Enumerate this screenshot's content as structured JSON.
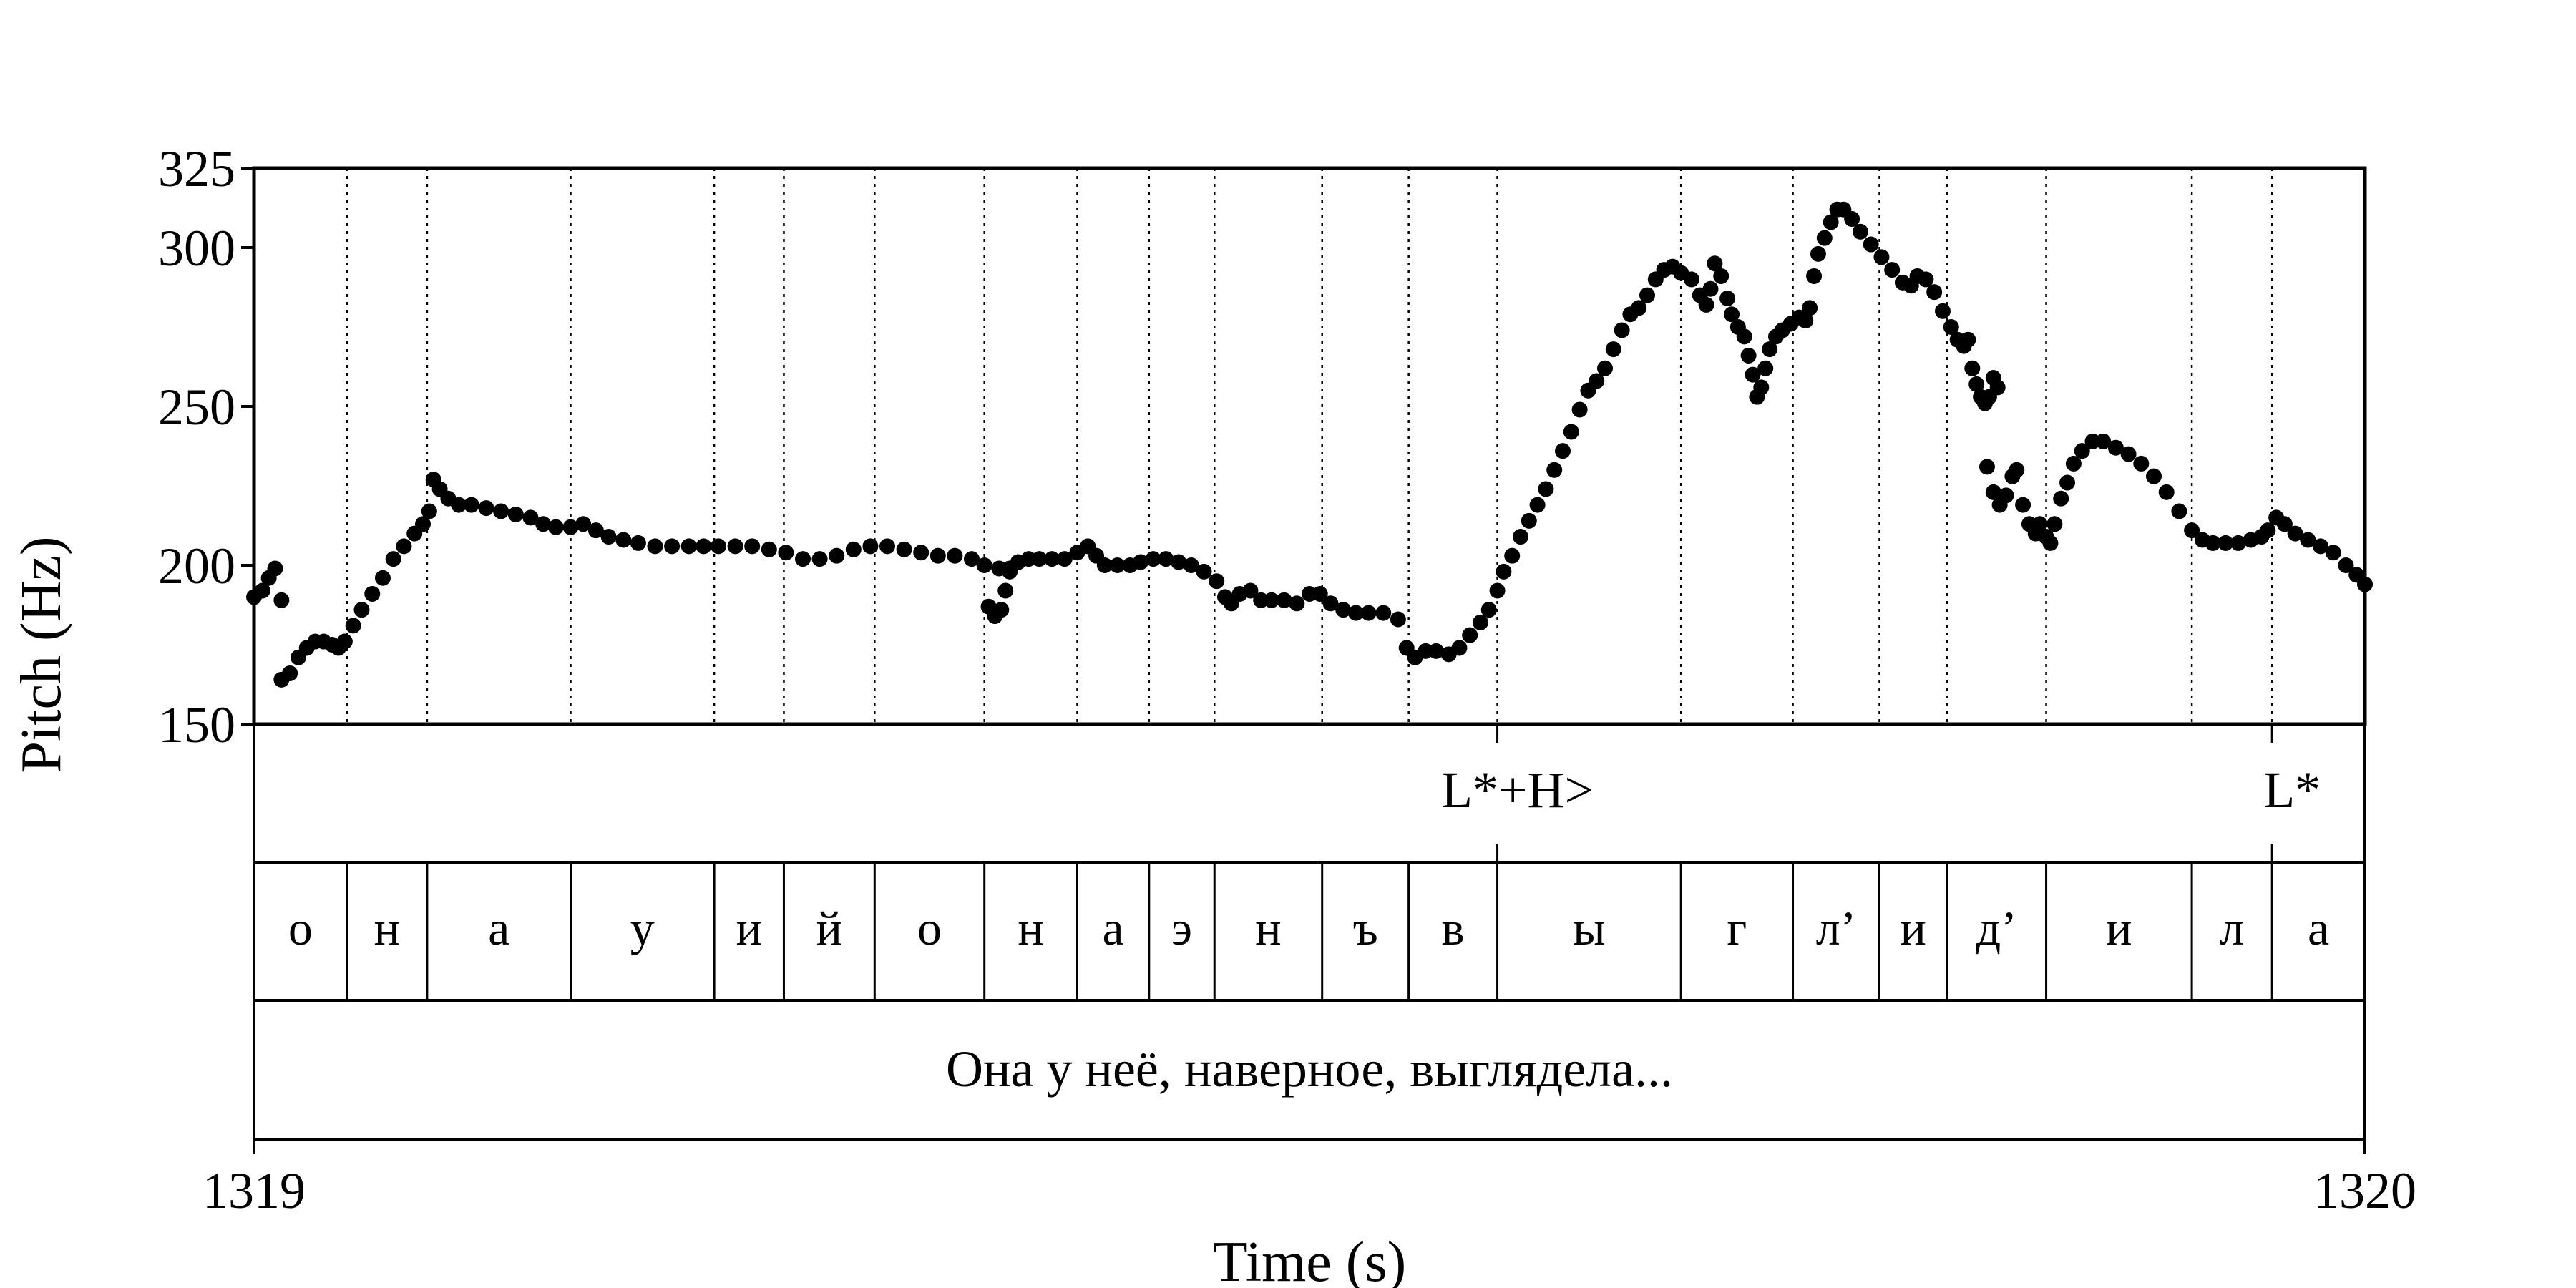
{
  "chart_data": {
    "type": "scatter",
    "title": "",
    "xlabel": "Time (s)",
    "ylabel": "Pitch (Hz)",
    "xlim": [
      1319,
      1320
    ],
    "ylim": [
      150,
      325
    ],
    "x_ticks": [
      "1319",
      "1320"
    ],
    "y_ticks": [
      "150",
      "200",
      "250",
      "300",
      "325"
    ],
    "y_tick_values": [
      150,
      200,
      250,
      300,
      325
    ],
    "grid": false,
    "segment_boundaries": [
      1319.0,
      1319.044,
      1319.082,
      1319.15,
      1319.218,
      1319.251,
      1319.294,
      1319.346,
      1319.39,
      1319.424,
      1319.455,
      1319.506,
      1319.547,
      1319.589,
      1319.676,
      1319.729,
      1319.77,
      1319.802,
      1319.849,
      1319.918,
      1319.956,
      1320.0
    ],
    "phones": [
      "о",
      "н",
      "а",
      "у",
      "и",
      "й",
      "о",
      "н",
      "а",
      "э",
      "н",
      "ъ",
      "в",
      "ы",
      "г",
      "л’",
      "и",
      "д’",
      "и",
      "л",
      "а"
    ],
    "tones": [
      {
        "label": "L*+H>",
        "time": 1319.589
      },
      {
        "label": "L*",
        "time": 1319.956
      }
    ],
    "sentence": "Она у неё, наверное, выглядела...",
    "series": [
      {
        "points": [
          [
            1319.0,
            190
          ],
          [
            1319.004,
            192
          ],
          [
            1319.007,
            196
          ],
          [
            1319.01,
            199
          ],
          [
            1319.013,
            189
          ],
          [
            1319.013,
            164
          ],
          [
            1319.017,
            166
          ],
          [
            1319.021,
            171
          ],
          [
            1319.025,
            174
          ],
          [
            1319.029,
            176
          ],
          [
            1319.033,
            176
          ],
          [
            1319.037,
            175
          ],
          [
            1319.04,
            174
          ],
          [
            1319.043,
            176
          ],
          [
            1319.047,
            181
          ],
          [
            1319.051,
            186
          ],
          [
            1319.056,
            191
          ],
          [
            1319.061,
            196
          ],
          [
            1319.066,
            202
          ],
          [
            1319.071,
            206
          ],
          [
            1319.076,
            210
          ],
          [
            1319.08,
            213
          ],
          [
            1319.083,
            217
          ],
          [
            1319.085,
            227
          ],
          [
            1319.088,
            224
          ],
          [
            1319.092,
            221
          ],
          [
            1319.097,
            219
          ],
          [
            1319.103,
            219
          ],
          [
            1319.11,
            218
          ],
          [
            1319.117,
            217
          ],
          [
            1319.124,
            216
          ],
          [
            1319.131,
            215
          ],
          [
            1319.137,
            213
          ],
          [
            1319.143,
            212
          ],
          [
            1319.15,
            212
          ],
          [
            1319.156,
            213
          ],
          [
            1319.162,
            211
          ],
          [
            1319.168,
            209
          ],
          [
            1319.175,
            208
          ],
          [
            1319.182,
            207
          ],
          [
            1319.19,
            206
          ],
          [
            1319.198,
            206
          ],
          [
            1319.206,
            206
          ],
          [
            1319.213,
            206
          ],
          [
            1319.22,
            206
          ],
          [
            1319.228,
            206
          ],
          [
            1319.236,
            206
          ],
          [
            1319.244,
            205
          ],
          [
            1319.252,
            204
          ],
          [
            1319.26,
            202
          ],
          [
            1319.268,
            202
          ],
          [
            1319.276,
            203
          ],
          [
            1319.284,
            205
          ],
          [
            1319.292,
            206
          ],
          [
            1319.3,
            206
          ],
          [
            1319.308,
            205
          ],
          [
            1319.316,
            204
          ],
          [
            1319.324,
            203
          ],
          [
            1319.332,
            203
          ],
          [
            1319.34,
            202
          ],
          [
            1319.346,
            200
          ],
          [
            1319.353,
            199
          ],
          [
            1319.358,
            198
          ],
          [
            1319.348,
            187
          ],
          [
            1319.351,
            184
          ],
          [
            1319.354,
            186
          ],
          [
            1319.356,
            192
          ],
          [
            1319.358,
            199
          ],
          [
            1319.362,
            201
          ],
          [
            1319.367,
            202
          ],
          [
            1319.372,
            202
          ],
          [
            1319.378,
            202
          ],
          [
            1319.384,
            202
          ],
          [
            1319.39,
            204
          ],
          [
            1319.395,
            206
          ],
          [
            1319.399,
            203
          ],
          [
            1319.403,
            200
          ],
          [
            1319.409,
            200
          ],
          [
            1319.415,
            200
          ],
          [
            1319.42,
            201
          ],
          [
            1319.426,
            202
          ],
          [
            1319.432,
            202
          ],
          [
            1319.438,
            201
          ],
          [
            1319.444,
            200
          ],
          [
            1319.45,
            198
          ],
          [
            1319.456,
            195
          ],
          [
            1319.46,
            190
          ],
          [
            1319.463,
            188
          ],
          [
            1319.467,
            191
          ],
          [
            1319.472,
            192
          ],
          [
            1319.477,
            189
          ],
          [
            1319.482,
            189
          ],
          [
            1319.488,
            189
          ],
          [
            1319.494,
            188
          ],
          [
            1319.5,
            191
          ],
          [
            1319.505,
            191
          ],
          [
            1319.51,
            188
          ],
          [
            1319.516,
            186
          ],
          [
            1319.522,
            185
          ],
          [
            1319.528,
            185
          ],
          [
            1319.535,
            185
          ],
          [
            1319.542,
            183
          ],
          [
            1319.546,
            174
          ],
          [
            1319.55,
            171
          ],
          [
            1319.555,
            173
          ],
          [
            1319.56,
            173
          ],
          [
            1319.566,
            172
          ],
          [
            1319.571,
            174
          ],
          [
            1319.576,
            178
          ],
          [
            1319.581,
            182
          ],
          [
            1319.585,
            186
          ],
          [
            1319.589,
            192
          ],
          [
            1319.592,
            198
          ],
          [
            1319.596,
            203
          ],
          [
            1319.6,
            209
          ],
          [
            1319.604,
            214
          ],
          [
            1319.608,
            219
          ],
          [
            1319.612,
            224
          ],
          [
            1319.616,
            230
          ],
          [
            1319.62,
            236
          ],
          [
            1319.624,
            242
          ],
          [
            1319.628,
            249
          ],
          [
            1319.632,
            255
          ],
          [
            1319.636,
            258
          ],
          [
            1319.64,
            262
          ],
          [
            1319.644,
            268
          ],
          [
            1319.648,
            274
          ],
          [
            1319.652,
            279
          ],
          [
            1319.656,
            281
          ],
          [
            1319.66,
            285
          ],
          [
            1319.664,
            290
          ],
          [
            1319.668,
            293
          ],
          [
            1319.672,
            294
          ],
          [
            1319.676,
            292
          ],
          [
            1319.681,
            290
          ],
          [
            1319.685,
            285
          ],
          [
            1319.688,
            282
          ],
          [
            1319.69,
            287
          ],
          [
            1319.692,
            295
          ],
          [
            1319.695,
            291
          ],
          [
            1319.698,
            284
          ],
          [
            1319.7,
            279
          ],
          [
            1319.703,
            275
          ],
          [
            1319.706,
            272
          ],
          [
            1319.708,
            266
          ],
          [
            1319.71,
            260
          ],
          [
            1319.712,
            253
          ],
          [
            1319.714,
            256
          ],
          [
            1319.716,
            262
          ],
          [
            1319.718,
            268
          ],
          [
            1319.721,
            272
          ],
          [
            1319.724,
            274
          ],
          [
            1319.728,
            276
          ],
          [
            1319.732,
            278
          ],
          [
            1319.735,
            277
          ],
          [
            1319.737,
            281
          ],
          [
            1319.739,
            291
          ],
          [
            1319.741,
            298
          ],
          [
            1319.744,
            303
          ],
          [
            1319.747,
            308
          ],
          [
            1319.75,
            312
          ],
          [
            1319.753,
            312
          ],
          [
            1319.757,
            309
          ],
          [
            1319.761,
            305
          ],
          [
            1319.766,
            301
          ],
          [
            1319.771,
            297
          ],
          [
            1319.776,
            293
          ],
          [
            1319.781,
            289
          ],
          [
            1319.785,
            288
          ],
          [
            1319.788,
            291
          ],
          [
            1319.792,
            290
          ],
          [
            1319.796,
            286
          ],
          [
            1319.8,
            280
          ],
          [
            1319.804,
            275
          ],
          [
            1319.807,
            271
          ],
          [
            1319.81,
            269
          ],
          [
            1319.812,
            271
          ],
          [
            1319.814,
            262
          ],
          [
            1319.816,
            257
          ],
          [
            1319.818,
            253
          ],
          [
            1319.82,
            251
          ],
          [
            1319.822,
            253
          ],
          [
            1319.824,
            259
          ],
          [
            1319.826,
            256
          ],
          [
            1319.821,
            231
          ],
          [
            1319.824,
            223
          ],
          [
            1319.827,
            219
          ],
          [
            1319.83,
            222
          ],
          [
            1319.833,
            228
          ],
          [
            1319.835,
            230
          ],
          [
            1319.838,
            219
          ],
          [
            1319.841,
            213
          ],
          [
            1319.844,
            210
          ],
          [
            1319.846,
            213
          ],
          [
            1319.849,
            209
          ],
          [
            1319.851,
            207
          ],
          [
            1319.853,
            213
          ],
          [
            1319.856,
            221
          ],
          [
            1319.859,
            226
          ],
          [
            1319.862,
            232
          ],
          [
            1319.866,
            236
          ],
          [
            1319.871,
            239
          ],
          [
            1319.876,
            239
          ],
          [
            1319.882,
            237
          ],
          [
            1319.888,
            235
          ],
          [
            1319.894,
            232
          ],
          [
            1319.9,
            228
          ],
          [
            1319.906,
            223
          ],
          [
            1319.912,
            217
          ],
          [
            1319.918,
            211
          ],
          [
            1319.923,
            208
          ],
          [
            1319.928,
            207
          ],
          [
            1319.934,
            207
          ],
          [
            1319.94,
            207
          ],
          [
            1319.946,
            208
          ],
          [
            1319.951,
            209
          ],
          [
            1319.954,
            211
          ],
          [
            1319.958,
            215
          ],
          [
            1319.962,
            213
          ],
          [
            1319.967,
            210
          ],
          [
            1319.973,
            208
          ],
          [
            1319.979,
            206
          ],
          [
            1319.985,
            204
          ],
          [
            1319.991,
            200
          ],
          [
            1319.996,
            197
          ],
          [
            1320.0,
            194
          ]
        ]
      }
    ]
  }
}
